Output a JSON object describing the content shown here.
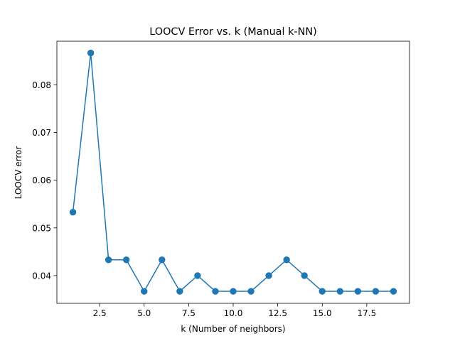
{
  "chart_data": {
    "type": "line",
    "title": "LOOCV Error vs. k (Manual k-NN)",
    "xlabel": "k (Number of neighbors)",
    "ylabel": "LOOCV error",
    "x": [
      1,
      2,
      3,
      4,
      5,
      6,
      7,
      8,
      9,
      10,
      11,
      12,
      13,
      14,
      15,
      16,
      17,
      18,
      19
    ],
    "series": [
      {
        "values": [
          0.0533,
          0.0867,
          0.0433,
          0.0433,
          0.0367,
          0.0433,
          0.0367,
          0.04,
          0.0367,
          0.0367,
          0.0367,
          0.04,
          0.0433,
          0.04,
          0.0367,
          0.0367,
          0.0367,
          0.0367,
          0.0367
        ],
        "color": "#1f77b4",
        "marker": "circle"
      }
    ],
    "xlim": [
      0.1,
      19.9
    ],
    "ylim": [
      0.03417,
      0.08917
    ],
    "xticks": [
      2.5,
      5.0,
      7.5,
      10.0,
      12.5,
      15.0,
      17.5
    ],
    "xtick_labels": [
      "2.5",
      "5.0",
      "7.5",
      "10.0",
      "12.5",
      "15.0",
      "17.5"
    ],
    "yticks": [
      0.04,
      0.05,
      0.06,
      0.07,
      0.08
    ],
    "ytick_labels": [
      "0.04",
      "0.05",
      "0.06",
      "0.07",
      "0.08"
    ],
    "grid": false,
    "legend": "none"
  }
}
